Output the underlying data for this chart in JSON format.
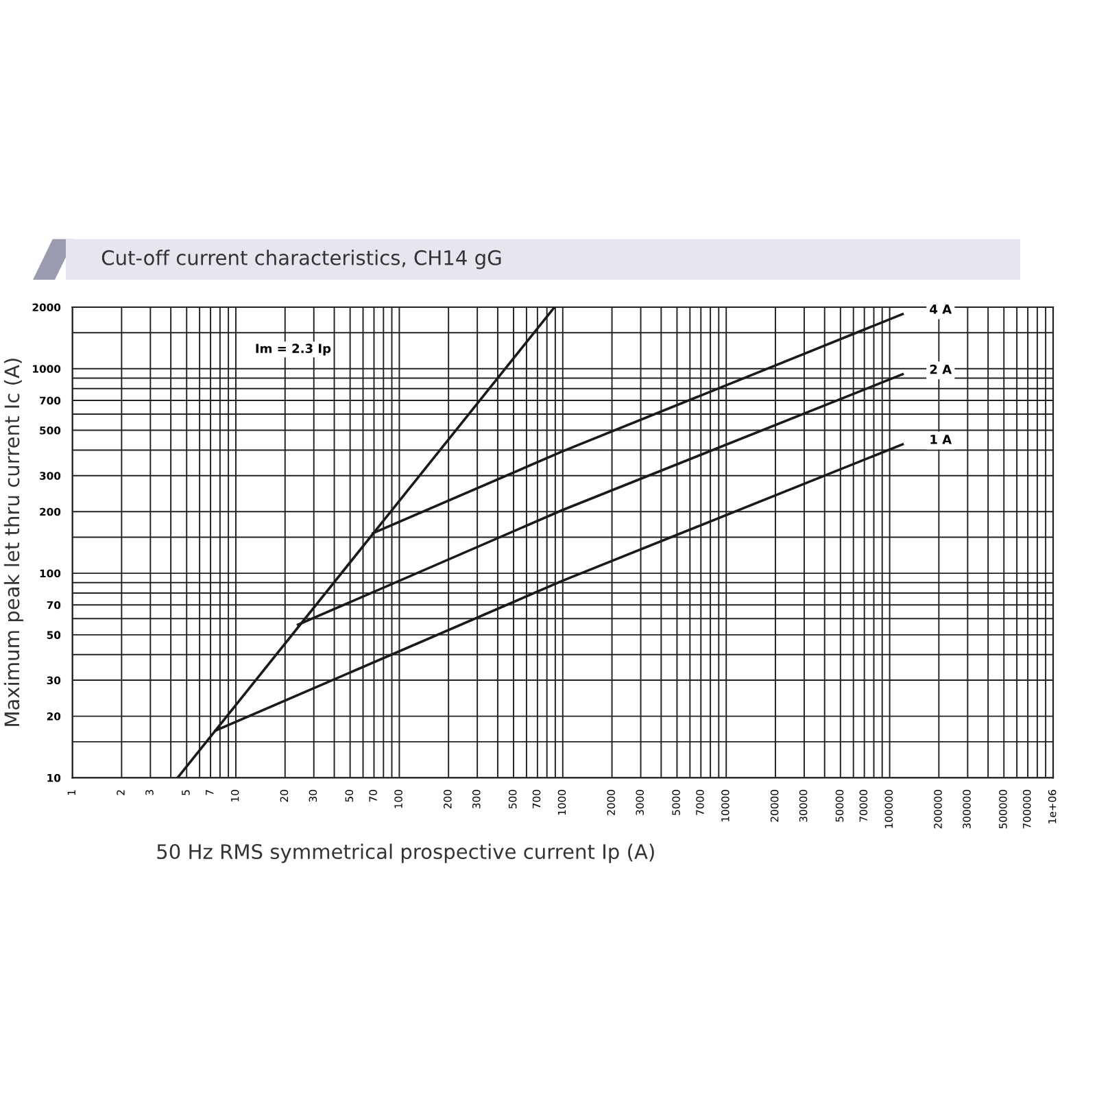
{
  "chart_data": {
    "type": "line",
    "title": "Cut-off current characteristics, CH14 gG",
    "xlabel": "50 Hz RMS symmetrical prospective current Ip (A)",
    "ylabel": "Maximum peak let thru current Ic (A)",
    "log": "xy",
    "grid": true,
    "legend": false,
    "marker": "none",
    "line_style": "solid",
    "xlim": [
      1,
      1000000
    ],
    "ylim": [
      10,
      2000
    ],
    "xticks": [
      1,
      2,
      3,
      {
        "value": 4,
        "label": null
      },
      5,
      {
        "value": 6,
        "label": null
      },
      7,
      {
        "value": 8,
        "label": null
      },
      {
        "value": 9,
        "label": null
      },
      10,
      20,
      30,
      {
        "value": 40,
        "label": null
      },
      50,
      {
        "value": 60,
        "label": null
      },
      70,
      {
        "value": 80,
        "label": null
      },
      {
        "value": 90,
        "label": null
      },
      100,
      200,
      300,
      {
        "value": 400,
        "label": null
      },
      500,
      {
        "value": 600,
        "label": null
      },
      700,
      {
        "value": 800,
        "label": null
      },
      {
        "value": 900,
        "label": null
      },
      1000,
      2000,
      3000,
      {
        "value": 4000,
        "label": null
      },
      5000,
      {
        "value": 6000,
        "label": null
      },
      7000,
      {
        "value": 8000,
        "label": null
      },
      {
        "value": 9000,
        "label": null
      },
      10000,
      20000,
      30000,
      {
        "value": 40000,
        "label": null
      },
      50000,
      {
        "value": 60000,
        "label": null
      },
      70000,
      {
        "value": 80000,
        "label": null
      },
      {
        "value": 90000,
        "label": null
      },
      100000,
      200000,
      300000,
      {
        "value": 400000,
        "label": null
      },
      500000,
      {
        "value": 600000,
        "label": null
      },
      700000,
      {
        "value": 800000,
        "label": null
      },
      {
        "value": 900000,
        "label": null
      },
      {
        "value": 1000000,
        "label": "1e+06"
      }
    ],
    "yticks": [
      10,
      {
        "value": 15,
        "label": null
      },
      20,
      30,
      {
        "value": 40,
        "label": null
      },
      50,
      {
        "value": 60,
        "label": null
      },
      70,
      {
        "value": 80,
        "label": null
      },
      {
        "value": 90,
        "label": null
      },
      100,
      {
        "value": 150,
        "label": null
      },
      200,
      300,
      {
        "value": 400,
        "label": null
      },
      500,
      {
        "value": 600,
        "label": null
      },
      700,
      {
        "value": 800,
        "label": null
      },
      {
        "value": 900,
        "label": null
      },
      1000,
      {
        "value": 1500,
        "label": null
      },
      2000
    ],
    "annotations": [
      "Im = 2.3 Ip"
    ],
    "series": [
      {
        "color": "#1a1a1a",
        "x": [
          4.4,
          890
        ],
        "values": [
          10,
          2000
        ]
      },
      {
        "name": "1 A",
        "color": "#1a1a1a",
        "x": [
          7.5,
          1000,
          120000
        ],
        "values": [
          17,
          92,
          427
        ]
      },
      {
        "name": "2 A",
        "color": "#1a1a1a",
        "x": [
          24,
          1000,
          120000
        ],
        "values": [
          56,
          204,
          940
        ]
      },
      {
        "name": "4 A",
        "color": "#1a1a1a",
        "x": [
          69,
          1000,
          120000
        ],
        "values": [
          157,
          395,
          1850
        ]
      }
    ]
  }
}
